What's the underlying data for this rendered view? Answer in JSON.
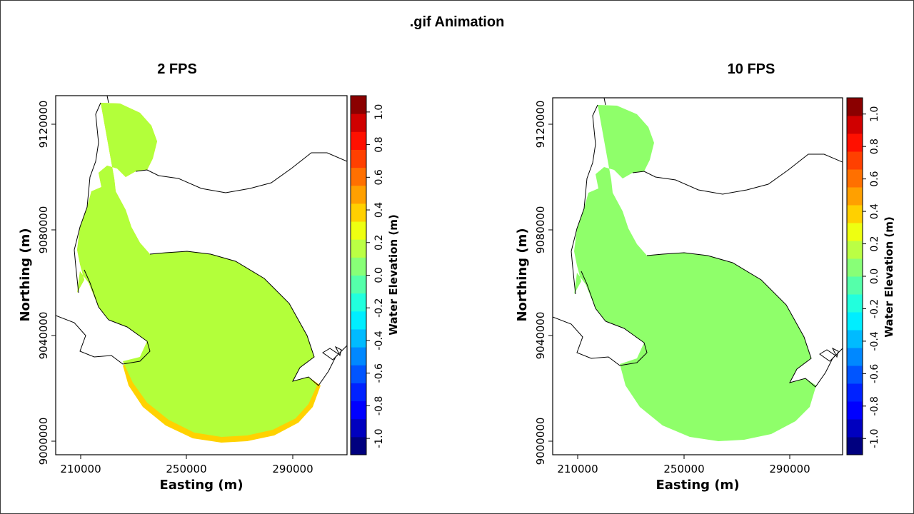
{
  "slide_title": ".gif Animation",
  "colors": {
    "panel_1_fill": "#b3ff3a",
    "panel_2_fill": "#8fff6a",
    "panel_1_edge": "#ffd200",
    "colorscale": [
      "#00007f",
      "#0000bf",
      "#0000ff",
      "#0022ff",
      "#0055ff",
      "#0088ff",
      "#00bbff",
      "#00eeff",
      "#22ffdd",
      "#55ffaa",
      "#88ff77",
      "#bbff44",
      "#eeff11",
      "#ffd000",
      "#ffa000",
      "#ff7000",
      "#ff4000",
      "#ff1000",
      "#d00000",
      "#8b0000"
    ]
  },
  "panels": [
    {
      "title": "2 FPS",
      "x_label": "Easting (m)",
      "y_label": "Northing (m)",
      "colorbar_label": "Water Elevation (m)"
    },
    {
      "title": "10 FPS",
      "x_label": "Easting (m)",
      "y_label": "Northing (m)",
      "colorbar_label": "Water Elevation (m)"
    }
  ],
  "chart_data": {
    "type": "heatmap",
    "x_ticks": [
      "210000",
      "250000",
      "290000"
    ],
    "y_ticks": [
      "9000000",
      "9040000",
      "9080000",
      "9120000"
    ],
    "colorbar_ticks": [
      "-1.0",
      "-0.8",
      "-0.6",
      "-0.4",
      "-0.2",
      "0.0",
      "0.2",
      "0.4",
      "0.6",
      "0.8",
      "1.0"
    ],
    "colorbar_range": [
      -1.1,
      1.1
    ]
  }
}
